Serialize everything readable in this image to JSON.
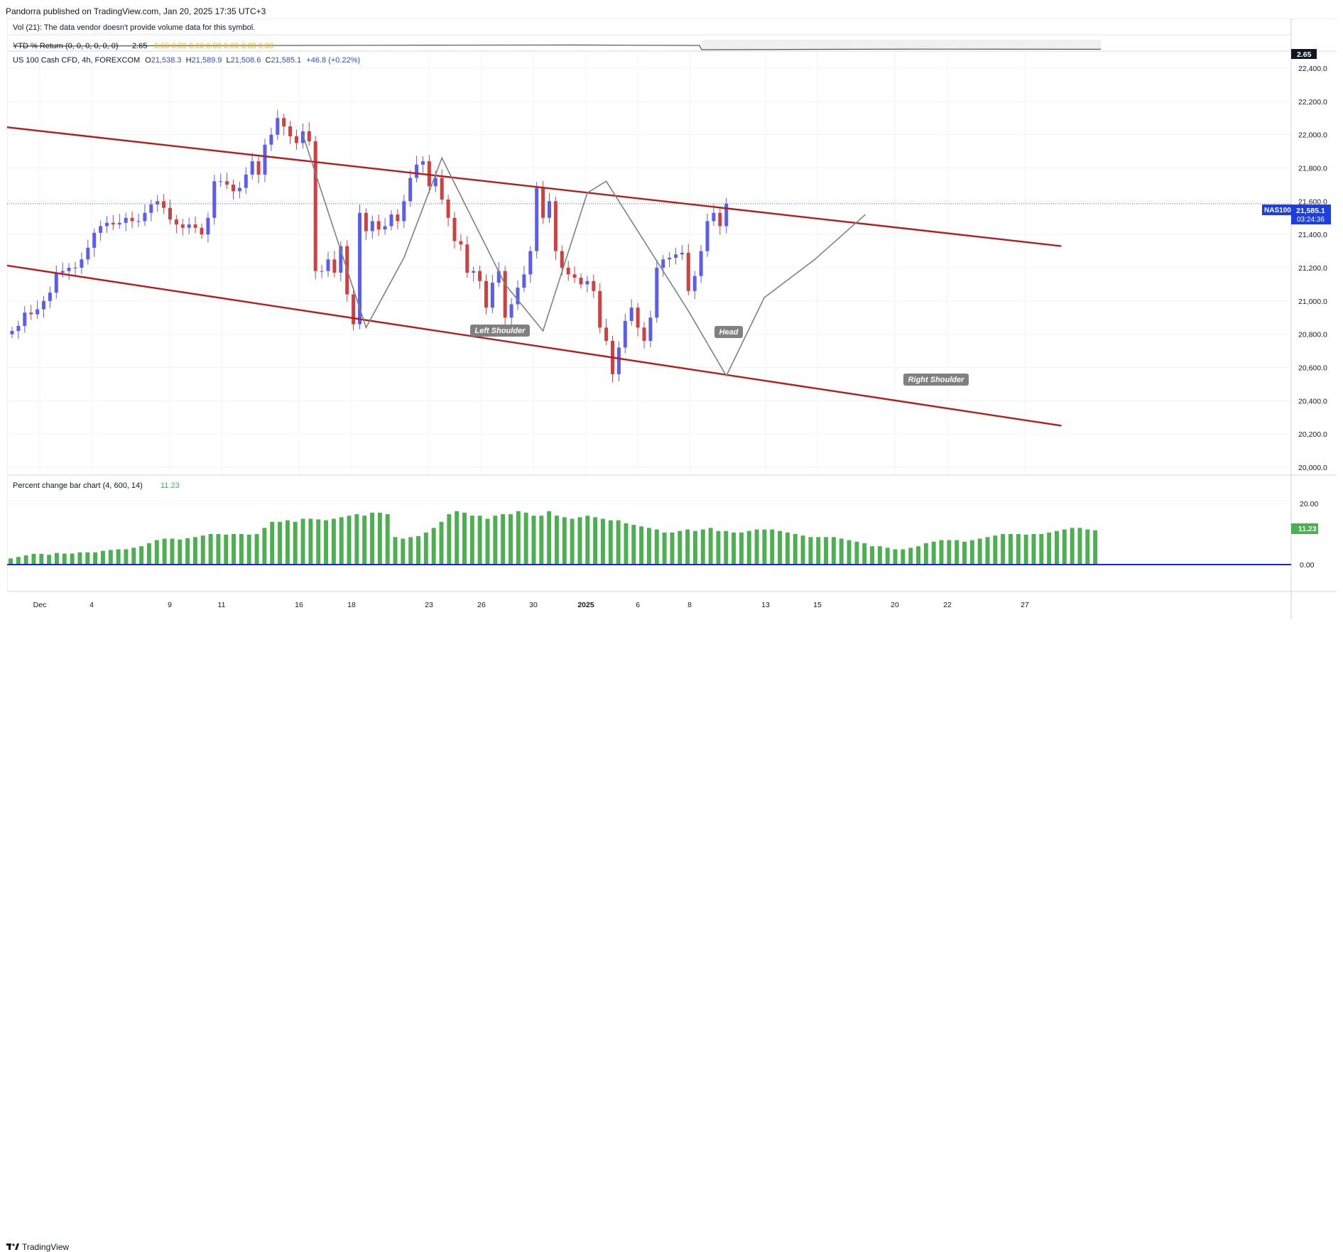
{
  "header": {
    "publisher_line": "Pandorra published on TradingView.com, Jan 20, 2025 17:35 UTC+3"
  },
  "panes": {
    "volume": {
      "legend": "Vol (21): The data vendor doesn't provide volume data for this symbol."
    },
    "ytd": {
      "legend_name": "YTD % Return (0, 0, 0, 0, 0, 0)",
      "legend_value": "2.65",
      "legend_zeros": "0.00  0.00  0.00  0.00  0.00  0.00  0.00",
      "scale_badge": "2.65"
    },
    "main": {
      "symbol_legend": "US 100 Cash CFD, 4h, FOREXCOM",
      "ohlc": {
        "o_label": "O",
        "o": "21,538.3",
        "h_label": "H",
        "h": "21,589.9",
        "l_label": "L",
        "l": "21,508.6",
        "c_label": "C",
        "c": "21,585.1",
        "change": "+46.8 (+0.22%)"
      },
      "price_badge": "21,585.1",
      "countdown": "03:24:36",
      "ticker_badge": "NAS100"
    },
    "percent": {
      "legend_name": "Percent change bar chart (4, 600, 14)",
      "legend_value": "11.23",
      "scale_badge": "11.23"
    }
  },
  "annotations": {
    "left_shoulder": "Left Shoulder",
    "head": "Head",
    "right_shoulder": "Right Shoulder"
  },
  "footer": {
    "brand": "TradingView"
  },
  "colors": {
    "bull": "#5b5cf0",
    "bear": "#d04040",
    "channel": "#b71c1c",
    "pattern": "#808080",
    "bars": "#4caf50",
    "zero_line": "#1a24d6",
    "ticker_bg": "#1e3fe0"
  },
  "chart_data": [
    {
      "type": "candlestick",
      "title": "US 100 Cash CFD, 4h, FOREXCOM",
      "y_ticks": [
        "22,400.0",
        "22,200.0",
        "22,000.0",
        "21,800.0",
        "21,600.0",
        "21,400.0",
        "21,200.0",
        "21,000.0",
        "20,800.0",
        "20,600.0",
        "20,400.0",
        "20,200.0",
        "20,000.0"
      ],
      "x_ticks": [
        "Dec",
        "4",
        "9",
        "11",
        "16",
        "18",
        "23",
        "26",
        "30",
        "2025",
        "6",
        "8",
        "13",
        "15",
        "20",
        "22",
        "27"
      ],
      "ylim": [
        19900,
        22500
      ],
      "last_price": 21585.1,
      "closes_by_session": [
        20820,
        20850,
        20930,
        20920,
        20950,
        21000,
        21050,
        21170,
        21180,
        21200,
        21200,
        21250,
        21320,
        21410,
        21450,
        21470,
        21460,
        21470,
        21500,
        21480,
        21480,
        21530,
        21580,
        21600,
        21560,
        21490,
        21460,
        21440,
        21460,
        21440,
        21400,
        21500,
        21720,
        21720,
        21700,
        21660,
        21680,
        21760,
        21840,
        21760,
        21940,
        22000,
        22100,
        22050,
        21990,
        21950,
        22020,
        21960,
        21180,
        21180,
        21250,
        21170,
        21330,
        21040,
        20860,
        21530,
        21420,
        21480,
        21430,
        21450,
        21520,
        21480,
        21600,
        21740,
        21820,
        21840,
        21690,
        21740,
        21610,
        21500,
        21360,
        21340,
        21170,
        21180,
        21120,
        20960,
        21110,
        21180,
        20900,
        20980,
        21080,
        21160,
        21300,
        21680,
        21500,
        21600,
        21300,
        21200,
        21160,
        21140,
        21100,
        21120,
        21060,
        20840,
        20760,
        20560,
        20720,
        20880,
        20960,
        20840,
        20760,
        20900,
        21200,
        21250,
        21260,
        21280,
        21290,
        21060,
        21150,
        21300,
        21480,
        21530,
        21450,
        21585
      ],
      "trendlines": [
        {
          "name": "upper",
          "from": [
            -2,
            22050
          ],
          "to": [
            166,
            21330
          ]
        },
        {
          "name": "lower",
          "from": [
            -2,
            21220
          ],
          "to": [
            166,
            20250
          ]
        }
      ],
      "pattern_points": [
        [
          46,
          22000
        ],
        [
          56,
          20840
        ],
        [
          62,
          21260
        ],
        [
          68,
          21860
        ],
        [
          78,
          21100
        ],
        [
          84,
          20820
        ],
        [
          91,
          21650
        ],
        [
          94,
          21720
        ],
        [
          107,
          20940
        ],
        [
          113,
          20550
        ],
        [
          119,
          21020
        ],
        [
          127,
          21250
        ],
        [
          135,
          21520
        ]
      ]
    },
    {
      "type": "line",
      "title": "YTD % Return (0, 0, 0, 0, 0, 0)",
      "last_value": 2.65
    },
    {
      "type": "bar",
      "title": "Percent change bar chart (4, 600, 14)",
      "y_ticks": [
        "20.00",
        "0.00"
      ],
      "ylim": [
        -4,
        24
      ],
      "last_value": 11.23,
      "values": [
        2,
        2.5,
        3,
        3.5,
        3.5,
        3.2,
        3.8,
        3.6,
        3.6,
        4,
        4,
        4,
        4.5,
        4.8,
        5,
        5,
        5.5,
        6,
        7,
        8,
        8.5,
        8.5,
        8.2,
        8.6,
        9,
        9.5,
        10,
        10,
        9.8,
        10,
        10,
        9.8,
        10,
        12,
        14,
        14,
        14.5,
        14,
        15,
        15,
        14.8,
        14.5,
        15,
        15.5,
        16,
        16.5,
        16,
        17,
        17,
        16.5,
        9,
        8.5,
        9,
        9.3,
        10.5,
        12,
        14,
        16.5,
        17.5,
        17,
        16,
        16,
        15,
        16,
        16.5,
        16.5,
        17.5,
        17,
        16,
        16,
        17.5,
        16,
        15.5,
        15,
        15.5,
        16,
        15.5,
        15,
        14.5,
        14.5,
        13.5,
        13,
        12.5,
        12,
        11.5,
        10.5,
        10.5,
        11,
        11.5,
        11,
        11.5,
        12,
        11,
        11,
        10.5,
        10.5,
        11,
        11.5,
        11.5,
        11.5,
        11,
        10.5,
        10,
        9.5,
        9,
        9,
        9,
        9,
        8.5,
        8,
        7.5,
        7,
        6,
        6,
        5.5,
        5,
        5,
        5.5,
        6,
        7,
        7.5,
        8,
        8,
        8,
        7.5,
        8,
        8.5,
        9,
        9.5,
        10,
        10,
        10,
        9.8,
        10,
        10,
        10.5,
        11,
        11.5,
        12,
        12,
        11.5,
        11.23
      ],
      "zero_line": 0
    }
  ]
}
